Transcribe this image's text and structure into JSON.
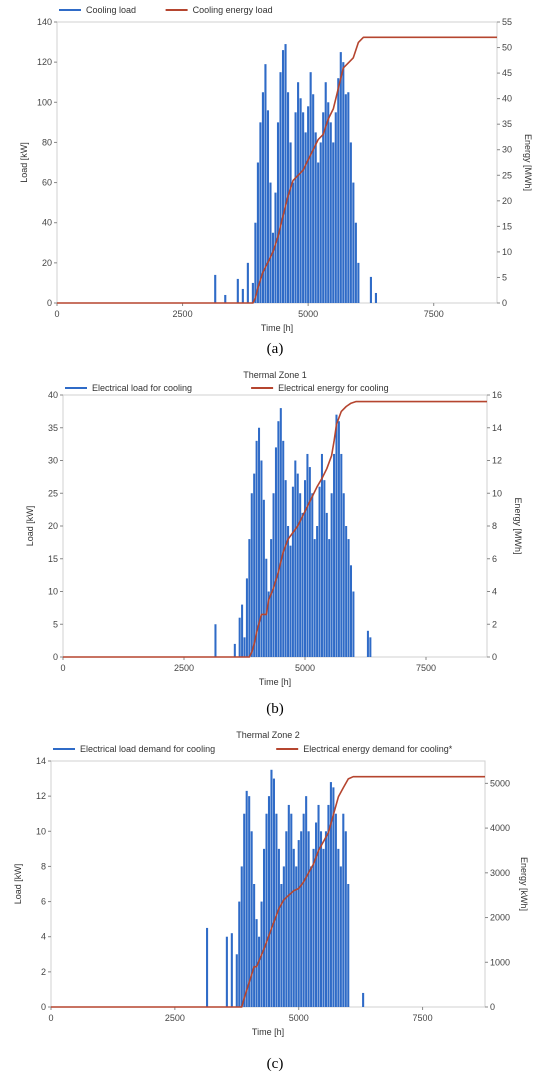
{
  "chart_data": [
    {
      "type": "bar",
      "subfigure": "(a)",
      "title": "",
      "xlabel": "Time [h]",
      "ylabel": "Load [kW]",
      "y2label": "Energy [MWh]",
      "xlim": [
        0,
        8760
      ],
      "ylim": [
        0,
        140
      ],
      "y2lim": [
        0,
        55
      ],
      "xticks": [
        0,
        2500,
        5000,
        7500
      ],
      "xtick_labels": [
        "0",
        "2500",
        "5000",
        "7500"
      ],
      "yticks": [
        0,
        20,
        40,
        60,
        80,
        100,
        120,
        140
      ],
      "y2ticks": [
        0,
        5,
        10,
        15,
        20,
        25,
        30,
        35,
        40,
        45,
        50,
        55
      ],
      "legend_position": "top-left",
      "series": [
        {
          "name": "Cooling load",
          "type": "bar",
          "color": "#2f6bc7",
          "axis": "left",
          "x": [
            3150,
            3350,
            3600,
            3700,
            3800,
            3900,
            3950,
            4000,
            4050,
            4100,
            4150,
            4200,
            4250,
            4300,
            4350,
            4400,
            4450,
            4500,
            4550,
            4600,
            4650,
            4700,
            4750,
            4800,
            4850,
            4900,
            4950,
            5000,
            5050,
            5100,
            5150,
            5200,
            5250,
            5300,
            5350,
            5400,
            5450,
            5500,
            5550,
            5600,
            5650,
            5700,
            5750,
            5800,
            5850,
            5900,
            5950,
            6000,
            6250,
            6350
          ],
          "values": [
            14,
            4,
            12,
            7,
            20,
            10,
            40,
            70,
            90,
            105,
            119,
            96,
            60,
            35,
            55,
            90,
            115,
            126,
            129,
            105,
            80,
            60,
            95,
            110,
            102,
            95,
            85,
            98,
            115,
            104,
            85,
            70,
            80,
            95,
            110,
            100,
            90,
            80,
            95,
            112,
            125,
            120,
            104,
            105,
            80,
            60,
            40,
            20,
            13,
            5
          ]
        },
        {
          "name": "Cooling energy load",
          "type": "line",
          "color": "#b5452f",
          "axis": "right",
          "x": [
            0,
            3900,
            3950,
            4000,
            4100,
            4200,
            4300,
            4400,
            4500,
            4600,
            4700,
            4800,
            4900,
            5000,
            5100,
            5200,
            5300,
            5400,
            5500,
            5600,
            5700,
            5800,
            5900,
            6000,
            6100,
            6500,
            8760
          ],
          "values": [
            0,
            0,
            1,
            3,
            6,
            8,
            10,
            13,
            17,
            21,
            24,
            25,
            26,
            28,
            30,
            32,
            33,
            36,
            38,
            42,
            46,
            47,
            48,
            51,
            52,
            52,
            52
          ]
        }
      ]
    },
    {
      "type": "bar",
      "subfigure": "(b)",
      "title": "Thermal Zone 1",
      "xlabel": "Time [h]",
      "ylabel": "Load [kW]",
      "y2label": "Energy [MWh]",
      "xlim": [
        0,
        8760
      ],
      "ylim": [
        0,
        40
      ],
      "y2lim": [
        0,
        16
      ],
      "xticks": [
        0,
        2500,
        5000,
        7500
      ],
      "xtick_labels": [
        "0",
        "2500",
        "5000",
        "7500"
      ],
      "yticks": [
        0,
        5,
        10,
        15,
        20,
        25,
        30,
        35,
        40
      ],
      "y2ticks": [
        0,
        2,
        4,
        6,
        8,
        10,
        12,
        14,
        16
      ],
      "legend_position": "top-left",
      "series": [
        {
          "name": "Electrical load for cooling",
          "type": "bar",
          "color": "#2f6bc7",
          "axis": "left",
          "x": [
            3150,
            3550,
            3650,
            3700,
            3750,
            3800,
            3850,
            3900,
            3950,
            4000,
            4050,
            4100,
            4150,
            4200,
            4250,
            4300,
            4350,
            4400,
            4450,
            4500,
            4550,
            4600,
            4650,
            4700,
            4750,
            4800,
            4850,
            4900,
            4950,
            5000,
            5050,
            5100,
            5150,
            5200,
            5250,
            5300,
            5350,
            5400,
            5450,
            5500,
            5550,
            5600,
            5650,
            5700,
            5750,
            5800,
            5850,
            5900,
            5950,
            6000,
            6300,
            6350
          ],
          "values": [
            5,
            2,
            6,
            8,
            3,
            12,
            18,
            25,
            28,
            33,
            35,
            30,
            24,
            15,
            10,
            18,
            25,
            32,
            36,
            38,
            33,
            27,
            20,
            17,
            26,
            30,
            28,
            25,
            22,
            27,
            31,
            29,
            25,
            18,
            20,
            26,
            31,
            27,
            22,
            18,
            25,
            31,
            37,
            36,
            31,
            25,
            20,
            18,
            14,
            10,
            4,
            3
          ]
        },
        {
          "name": "Electrical energy for cooling",
          "type": "line",
          "color": "#b5452f",
          "axis": "right",
          "x": [
            0,
            3850,
            3900,
            3950,
            4000,
            4100,
            4200,
            4250,
            4350,
            4450,
            4550,
            4650,
            4750,
            4850,
            4950,
            5050,
            5150,
            5250,
            5350,
            5450,
            5550,
            5600,
            5650,
            5700,
            5750,
            5850,
            5950,
            6050,
            6500,
            8760
          ],
          "values": [
            0,
            0,
            0.3,
            0.8,
            1.5,
            2.6,
            2.6,
            3.5,
            4.2,
            5.2,
            6.4,
            7.2,
            7.6,
            8.0,
            8.6,
            9.2,
            9.8,
            10.4,
            10.9,
            11.5,
            12.3,
            13.2,
            14.2,
            14.6,
            15.0,
            15.3,
            15.5,
            15.6,
            15.6,
            15.6
          ]
        }
      ]
    },
    {
      "type": "bar",
      "subfigure": "(c)",
      "title": "Thermal Zone 2",
      "xlabel": "Time [h]",
      "ylabel": "Load [kW]",
      "y2label": "Energy [kWh]",
      "xlim": [
        0,
        8760
      ],
      "ylim": [
        0,
        14
      ],
      "y2lim": [
        0,
        5500
      ],
      "xticks": [
        0,
        2500,
        5000,
        7500
      ],
      "xtick_labels": [
        "0",
        "2500",
        "5000",
        "7500"
      ],
      "yticks": [
        0,
        2,
        4,
        6,
        8,
        10,
        12,
        14
      ],
      "y2ticks": [
        0,
        1000,
        2000,
        3000,
        4000,
        5000
      ],
      "legend_position": "top-left",
      "series": [
        {
          "name": "Electrical load demand for cooling",
          "type": "bar",
          "color": "#2f6bc7",
          "axis": "left",
          "x": [
            3150,
            3550,
            3650,
            3750,
            3800,
            3850,
            3900,
            3950,
            4000,
            4050,
            4100,
            4150,
            4200,
            4250,
            4300,
            4350,
            4400,
            4450,
            4500,
            4550,
            4600,
            4650,
            4700,
            4750,
            4800,
            4850,
            4900,
            4950,
            5000,
            5050,
            5100,
            5150,
            5200,
            5250,
            5300,
            5350,
            5400,
            5450,
            5500,
            5550,
            5600,
            5650,
            5700,
            5750,
            5800,
            5850,
            5900,
            5950,
            6000,
            6300
          ],
          "values": [
            4.5,
            4,
            4.2,
            3,
            6,
            8,
            11,
            12.3,
            12,
            10,
            7,
            5,
            4,
            6,
            9,
            11,
            12,
            13.5,
            13,
            11,
            9,
            7,
            8,
            10,
            11.5,
            11,
            9,
            8,
            9.5,
            10,
            11,
            12,
            10,
            8,
            9,
            10.5,
            11.5,
            10,
            9,
            10,
            11.5,
            12.8,
            12.5,
            11,
            9,
            8,
            11,
            10,
            7,
            0.8
          ]
        },
        {
          "name": "Electrical energy demand for cooling*",
          "type": "line",
          "color": "#b5452f",
          "axis": "right",
          "x": [
            0,
            3850,
            3900,
            4000,
            4100,
            4150,
            4300,
            4400,
            4500,
            4600,
            4700,
            4800,
            4900,
            5000,
            5100,
            5200,
            5300,
            5400,
            5500,
            5600,
            5700,
            5800,
            5900,
            6000,
            6100,
            6500,
            8760
          ],
          "values": [
            0,
            0,
            200,
            550,
            900,
            900,
            1300,
            1600,
            1900,
            2200,
            2400,
            2500,
            2600,
            2650,
            2800,
            3000,
            3200,
            3500,
            3700,
            3900,
            4300,
            4700,
            4900,
            5100,
            5150,
            5150,
            5150
          ]
        }
      ]
    }
  ],
  "subfigure_labels": [
    "(a)",
    "(b)",
    "(c)"
  ]
}
